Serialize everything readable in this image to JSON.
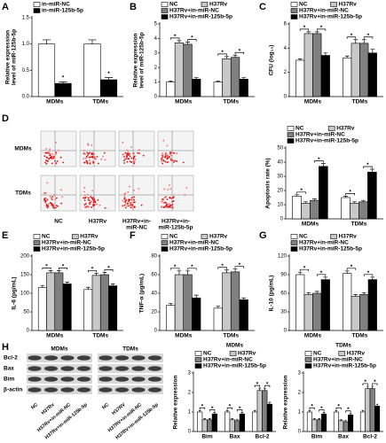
{
  "panel_labels": [
    "A",
    "B",
    "C",
    "D",
    "E",
    "F",
    "G",
    "H"
  ],
  "flow": {
    "rows": [
      "MDMs",
      "TDMs"
    ],
    "columns": [
      [
        "NC"
      ],
      [
        "H37Rv"
      ],
      [
        "H37Rv+in-",
        "miR-NC"
      ],
      [
        "H37Rv+in-",
        "miR-125b-5p"
      ]
    ]
  },
  "blot": {
    "groups": [
      "MDMs",
      "TDMs"
    ],
    "proteins": [
      "Bcl-2",
      "Bax",
      "Bim",
      "β-actin"
    ],
    "lanes": [
      [
        "NC",
        "H37Rv",
        "H37Rv+in-miR-NC",
        "H37Rv+in-miR-125b-5p"
      ],
      [
        "NC",
        "H37RV",
        "H37RV+in-miR-NC",
        "H37RV+in-miR-125b-5p"
      ]
    ]
  },
  "chart_data": [
    {
      "type": "bar",
      "ylabel": [
        "Relative expression",
        "level of miR-125b-5p"
      ],
      "categories": [
        "MDMs",
        "TDMs"
      ],
      "series": [
        {
          "name": "in-miR-NC",
          "color": "#ffffff",
          "values": [
            1.0,
            1.0
          ],
          "errors": [
            0.08,
            0.08
          ]
        },
        {
          "name": "in-miR-125b-5p",
          "color": "#000000",
          "values": [
            0.25,
            0.32
          ],
          "errors": [
            0.03,
            0.04
          ]
        }
      ],
      "ylim": [
        0,
        1.5
      ],
      "yticks": [
        {
          "value": 0,
          "label": "0.0"
        },
        {
          "value": 0.5,
          "label": "0.5"
        },
        {
          "value": 1,
          "label": "1.0"
        },
        {
          "value": 1.5,
          "label": "1.5"
        }
      ],
      "annotations": [
        {
          "group": 0,
          "from": 1,
          "to": 1,
          "label": "*"
        },
        {
          "group": 1,
          "from": 1,
          "to": 1,
          "label": "*"
        }
      ]
    },
    {
      "type": "bar",
      "ylabel": [
        "Relative expression",
        "level of miR-125b-5p"
      ],
      "categories": [
        "MDMs",
        "TDMs"
      ],
      "series": [
        {
          "name": "NC",
          "color": "#ffffff",
          "values": [
            1.0,
            1.0
          ],
          "errors": [
            0.08,
            0.08
          ]
        },
        {
          "name": "H37Rv",
          "color": "#c8c8c8",
          "values": [
            3.7,
            2.6
          ],
          "errors": [
            0.15,
            0.15
          ]
        },
        {
          "name": "H37Rv+in-miR-NC",
          "color": "#808080",
          "values": [
            3.6,
            2.7
          ],
          "errors": [
            0.15,
            0.15
          ]
        },
        {
          "name": "H37Rv+in-miR-125b-5p",
          "color": "#000000",
          "values": [
            1.2,
            1.2
          ],
          "errors": [
            0.1,
            0.1
          ]
        }
      ],
      "ylim": [
        0,
        5
      ],
      "yticks": [
        0,
        1,
        2,
        3,
        4,
        5
      ],
      "annotations": [
        {
          "group": 0,
          "from": 0,
          "to": 1,
          "label": "*"
        },
        {
          "group": 0,
          "from": 2,
          "to": 3,
          "label": "*"
        },
        {
          "group": 1,
          "from": 0,
          "to": 1,
          "label": "*"
        },
        {
          "group": 1,
          "from": 2,
          "to": 3,
          "label": "*"
        }
      ]
    },
    {
      "type": "bar",
      "ylabel": [
        "CFU (log₁₀)"
      ],
      "categories": [
        "MDMs",
        "TDMs"
      ],
      "series": [
        {
          "name": "NC",
          "color": "#ffffff",
          "values": [
            3.0,
            3.2
          ],
          "errors": [
            0.1,
            0.15
          ]
        },
        {
          "name": "H37Rv",
          "color": "#c8c8c8",
          "values": [
            5.2,
            4.4
          ],
          "errors": [
            0.15,
            0.3
          ]
        },
        {
          "name": "H37Rv+in-miR-NC",
          "color": "#808080",
          "values": [
            5.2,
            4.4
          ],
          "errors": [
            0.15,
            0.3
          ]
        },
        {
          "name": "H37Rv+in-miR-125b-5p",
          "color": "#000000",
          "values": [
            3.4,
            3.6
          ],
          "errors": [
            0.2,
            0.3
          ]
        }
      ],
      "ylim": [
        0,
        6
      ],
      "yticks": [
        0,
        2,
        4,
        6
      ],
      "annotations": [
        {
          "group": 0,
          "from": 0,
          "to": 1,
          "label": "*"
        },
        {
          "group": 0,
          "from": 2,
          "to": 3,
          "label": "*"
        },
        {
          "group": 1,
          "from": 0,
          "to": 1,
          "label": "*"
        },
        {
          "group": 1,
          "from": 2,
          "to": 3,
          "label": "*"
        }
      ]
    },
    {
      "type": "bar",
      "ylabel": [
        "Apoptosis rate (%)"
      ],
      "categories": [
        "MDMs",
        "TDMs"
      ],
      "series": [
        {
          "name": "NC",
          "color": "#ffffff",
          "values": [
            16,
            15
          ],
          "errors": [
            1,
            1
          ]
        },
        {
          "name": "H37Rv",
          "color": "#c8c8c8",
          "values": [
            11,
            11
          ],
          "errors": [
            1,
            1
          ]
        },
        {
          "name": "H37Rv+in-miR-NC",
          "color": "#808080",
          "values": [
            13,
            12
          ],
          "errors": [
            1,
            1
          ]
        },
        {
          "name": "H37Rv+in-miR-125b-5p",
          "color": "#000000",
          "values": [
            37,
            33
          ],
          "errors": [
            2,
            2
          ]
        }
      ],
      "ylim": [
        0,
        50
      ],
      "yticks": [
        0,
        10,
        20,
        30,
        40,
        50
      ],
      "annotations": [
        {
          "group": 0,
          "from": 0,
          "to": 1,
          "label": "*"
        },
        {
          "group": 0,
          "from": 2,
          "to": 3,
          "label": "*"
        },
        {
          "group": 1,
          "from": 0,
          "to": 1,
          "label": "*"
        },
        {
          "group": 1,
          "from": 2,
          "to": 3,
          "label": "*"
        }
      ]
    },
    {
      "type": "bar",
      "ylabel": [
        "IL-6 (pg/mL)"
      ],
      "categories": [
        "MDMs",
        "TDMs"
      ],
      "series": [
        {
          "name": "NC",
          "color": "#ffffff",
          "values": [
            115,
            110
          ],
          "errors": [
            6,
            6
          ]
        },
        {
          "name": "H37Rv",
          "color": "#c8c8c8",
          "values": [
            155,
            148
          ],
          "errors": [
            6,
            6
          ]
        },
        {
          "name": "H37Rv+in-miR-NC",
          "color": "#808080",
          "values": [
            155,
            150
          ],
          "errors": [
            6,
            6
          ]
        },
        {
          "name": "H37Rv+in-miR-125b-5p",
          "color": "#000000",
          "values": [
            125,
            120
          ],
          "errors": [
            5,
            5
          ]
        }
      ],
      "ylim": [
        0,
        200
      ],
      "yticks": [
        0,
        50,
        100,
        150,
        200
      ],
      "annotations": [
        {
          "group": 0,
          "from": 0,
          "to": 1,
          "label": "*"
        },
        {
          "group": 0,
          "from": 2,
          "to": 3,
          "label": "*"
        },
        {
          "group": 1,
          "from": 0,
          "to": 1,
          "label": "*"
        },
        {
          "group": 1,
          "from": 2,
          "to": 3,
          "label": "*"
        }
      ]
    },
    {
      "type": "bar",
      "ylabel": [
        "TNF-α (pg/mL)"
      ],
      "categories": [
        "MDMs",
        "TDMs"
      ],
      "series": [
        {
          "name": "NC",
          "color": "#ffffff",
          "values": [
            27,
            24
          ],
          "errors": [
            2,
            2
          ]
        },
        {
          "name": "H37Rv",
          "color": "#c8c8c8",
          "values": [
            60,
            62
          ],
          "errors": [
            4,
            3
          ]
        },
        {
          "name": "H37Rv+in-miR-NC",
          "color": "#808080",
          "values": [
            60,
            63
          ],
          "errors": [
            4,
            3
          ]
        },
        {
          "name": "H37Rv+in-miR-125b-5p",
          "color": "#000000",
          "values": [
            35,
            33
          ],
          "errors": [
            3,
            2
          ]
        }
      ],
      "ylim": [
        0,
        80
      ],
      "yticks": [
        0,
        20,
        40,
        60,
        80
      ],
      "annotations": [
        {
          "group": 0,
          "from": 0,
          "to": 1,
          "label": "*"
        },
        {
          "group": 0,
          "from": 2,
          "to": 3,
          "label": "*"
        },
        {
          "group": 1,
          "from": 0,
          "to": 1,
          "label": "*"
        },
        {
          "group": 1,
          "from": 2,
          "to": 3,
          "label": "*"
        }
      ]
    },
    {
      "type": "bar",
      "ylabel": [
        "IL-10 (pg/mL)"
      ],
      "categories": [
        "MDMs",
        "TDMs"
      ],
      "series": [
        {
          "name": "NC",
          "color": "#ffffff",
          "values": [
            90,
            92
          ],
          "errors": [
            4,
            4
          ]
        },
        {
          "name": "H37Rv",
          "color": "#c8c8c8",
          "values": [
            58,
            55
          ],
          "errors": [
            3,
            3
          ]
        },
        {
          "name": "H37Rv+in-miR-NC",
          "color": "#808080",
          "values": [
            60,
            58
          ],
          "errors": [
            3,
            3
          ]
        },
        {
          "name": "H37Rv+in-miR-125b-5p",
          "color": "#000000",
          "values": [
            82,
            82
          ],
          "errors": [
            4,
            4
          ]
        }
      ],
      "ylim": [
        0,
        120
      ],
      "yticks": [
        0,
        30,
        60,
        90,
        120
      ],
      "annotations": [
        {
          "group": 0,
          "from": 0,
          "to": 1,
          "label": "*"
        },
        {
          "group": 0,
          "from": 2,
          "to": 3,
          "label": "*"
        },
        {
          "group": 1,
          "from": 0,
          "to": 1,
          "label": "*"
        },
        {
          "group": 1,
          "from": 2,
          "to": 3,
          "label": "*"
        }
      ]
    },
    {
      "type": "bar",
      "title": "MDMs",
      "ylabel": [
        "Relative expression"
      ],
      "categories": [
        "Bim",
        "Bax",
        "Bcl-2"
      ],
      "series": [
        {
          "name": "NC",
          "color": "#ffffff",
          "values": [
            1.0,
            1.0,
            1.0
          ],
          "errors": [
            0.08,
            0.08,
            0.08
          ]
        },
        {
          "name": "H37Rv",
          "color": "#c8c8c8",
          "values": [
            0.6,
            0.6,
            2.1
          ],
          "errors": [
            0.06,
            0.06,
            0.12
          ]
        },
        {
          "name": "H37Rv+in-miR-NC",
          "color": "#808080",
          "values": [
            0.6,
            0.55,
            2.1
          ],
          "errors": [
            0.06,
            0.06,
            0.12
          ]
        },
        {
          "name": "H37Rv+in-miR-125b-5p",
          "color": "#000000",
          "values": [
            0.9,
            0.9,
            1.4
          ],
          "errors": [
            0.07,
            0.07,
            0.1
          ]
        }
      ],
      "ylim": [
        0,
        3
      ],
      "yticks": [
        0,
        1,
        2,
        3
      ],
      "annotations": [
        {
          "group": 0,
          "from": 0,
          "to": 1,
          "label": "*"
        },
        {
          "group": 0,
          "from": 2,
          "to": 3,
          "label": "*"
        },
        {
          "group": 1,
          "from": 0,
          "to": 1,
          "label": "*"
        },
        {
          "group": 1,
          "from": 2,
          "to": 3,
          "label": "*"
        },
        {
          "group": 2,
          "from": 0,
          "to": 1,
          "label": "*"
        },
        {
          "group": 2,
          "from": 2,
          "to": 3,
          "label": "*"
        }
      ]
    },
    {
      "type": "bar",
      "title": "TDMs",
      "ylabel": [
        "Relative expression"
      ],
      "categories": [
        "Bim",
        "Bax",
        "Bcl-2"
      ],
      "series": [
        {
          "name": "NC",
          "color": "#ffffff",
          "values": [
            1.0,
            1.0,
            1.0
          ],
          "errors": [
            0.08,
            0.08,
            0.08
          ]
        },
        {
          "name": "H37Rv",
          "color": "#c8c8c8",
          "values": [
            0.6,
            0.55,
            2.2
          ],
          "errors": [
            0.06,
            0.06,
            0.12
          ]
        },
        {
          "name": "H37Rv+in-miR-NC",
          "color": "#808080",
          "values": [
            0.6,
            0.5,
            2.2
          ],
          "errors": [
            0.06,
            0.06,
            0.12
          ]
        },
        {
          "name": "H37Rv+in-miR-125b-5p",
          "color": "#000000",
          "values": [
            0.9,
            0.85,
            1.3
          ],
          "errors": [
            0.07,
            0.07,
            0.1
          ]
        }
      ],
      "ylim": [
        0,
        3
      ],
      "yticks": [
        0,
        1,
        2,
        3
      ],
      "annotations": [
        {
          "group": 0,
          "from": 0,
          "to": 1,
          "label": "*"
        },
        {
          "group": 0,
          "from": 2,
          "to": 3,
          "label": "*"
        },
        {
          "group": 1,
          "from": 0,
          "to": 1,
          "label": "*"
        },
        {
          "group": 1,
          "from": 2,
          "to": 3,
          "label": "*"
        },
        {
          "group": 2,
          "from": 0,
          "to": 1,
          "label": "*"
        },
        {
          "group": 2,
          "from": 2,
          "to": 3,
          "label": "*"
        }
      ]
    }
  ]
}
